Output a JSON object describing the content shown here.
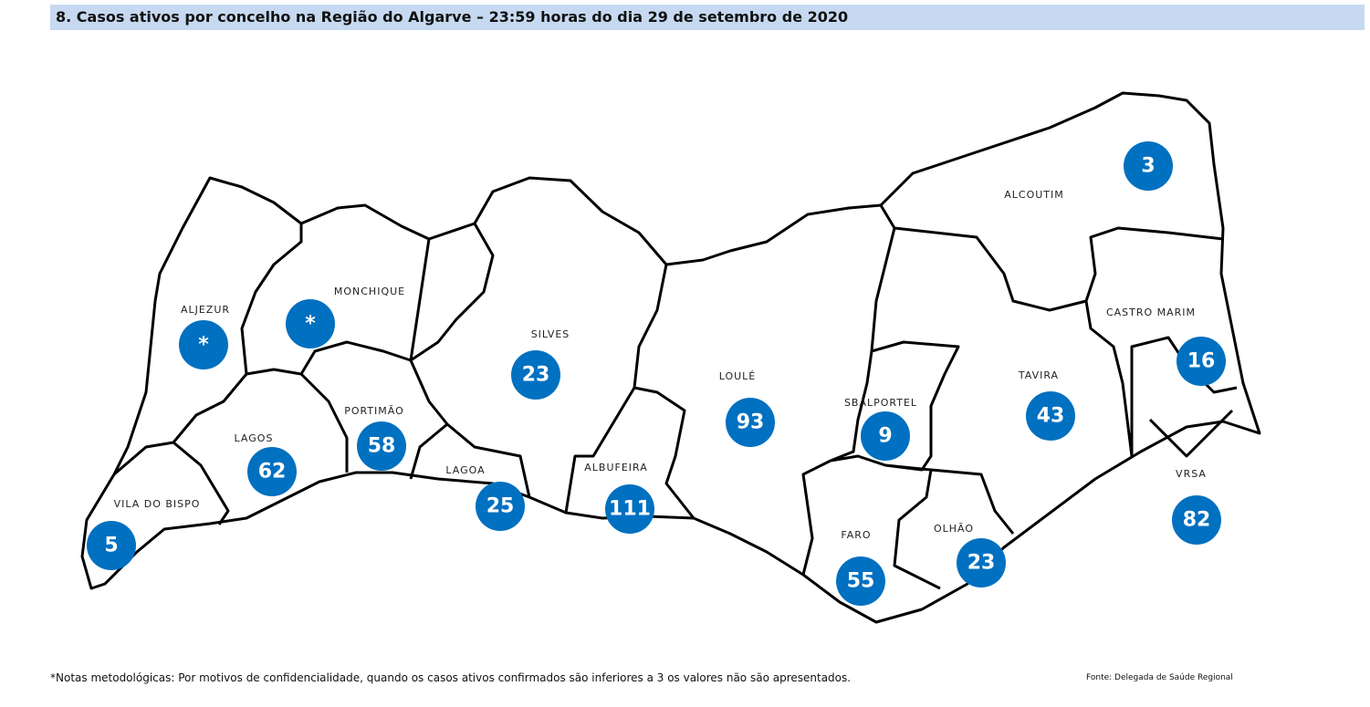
{
  "header": {
    "title": "8.   Casos ativos por concelho na Região do Algarve – 23:59 horas do dia 29 de setembro de 2020"
  },
  "municipalities": [
    {
      "name": "ALJEZUR",
      "value": "*"
    },
    {
      "name": "MONCHIQUE",
      "value": "*"
    },
    {
      "name": "SILVES",
      "value": 23
    },
    {
      "name": "LAGOS",
      "value": 62
    },
    {
      "name": "PORTIMÃO",
      "value": 58
    },
    {
      "name": "LAGOA",
      "value": 25
    },
    {
      "name": "VILA DO BISPO",
      "value": 5
    },
    {
      "name": "ALBUFEIRA",
      "value": 111
    },
    {
      "name": "LOULÉ",
      "value": 93
    },
    {
      "name": "SBALPORTEL",
      "value": 9
    },
    {
      "name": "FARO",
      "value": 55
    },
    {
      "name": "OLHÃO",
      "value": 23
    },
    {
      "name": "TAVIRA",
      "value": 43
    },
    {
      "name": "ALCOUTIM",
      "value": 3
    },
    {
      "name": "CASTRO MARIM",
      "value": 16
    },
    {
      "name": "VRSA",
      "value": 82
    }
  ],
  "footer": {
    "note": "*Notas metodológicas: Por motivos de confidencialidade, quando os casos ativos confirmados são inferiores a 3 os valores não são apresentados.",
    "source": "Fonte: Delegada de Saúde Regional"
  }
}
